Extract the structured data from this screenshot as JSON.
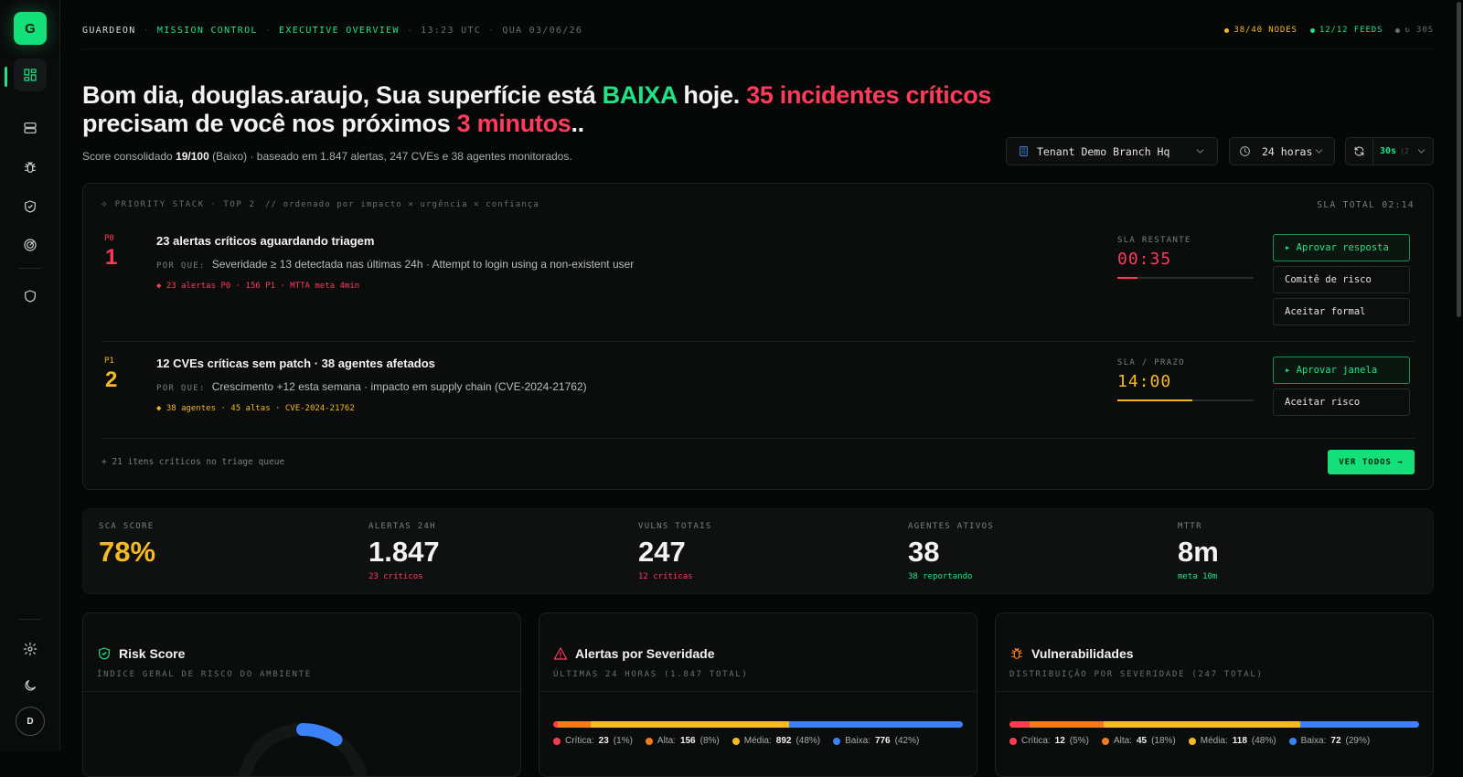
{
  "app": {
    "logo_letter": "G",
    "user_initial": "D"
  },
  "sidebar": {
    "items": [
      {
        "name": "dashboard-icon",
        "active": true
      },
      {
        "name": "server-icon"
      },
      {
        "name": "bug-icon"
      },
      {
        "name": "shield-check-icon"
      },
      {
        "name": "radar-icon"
      },
      {
        "name": "shield-icon"
      }
    ],
    "bottom": [
      "gear-icon",
      "moon-icon"
    ]
  },
  "topbar": {
    "brand": "GUARDEON",
    "section": "MISSION CONTROL",
    "page": "EXECUTIVE OVERVIEW",
    "time": "13:23 UTC",
    "date": "QUA 03/06/26",
    "nodes": "38/40 NODES",
    "feeds": "12/12 FEEDS",
    "refresh": "↻ 30S"
  },
  "headline": {
    "part1": "Bom dia, douglas.araujo, Sua superfície está ",
    "level": "BAIXA",
    "part2": " hoje. ",
    "incidents": "35 incidentes críticos",
    "part3": "precisam de você nos próximos ",
    "minutes": "3 minutos",
    "part4": "..",
    "sub_prefix": "Score consolidado ",
    "sub_score": "19/100",
    "sub_rest": " (Baixo) · baseado em 1.847 alertas, 247 CVEs e 38 agentes monitorados."
  },
  "controls": {
    "tenant": "Tenant Demo Branch Hq",
    "range": "24 horas",
    "interval": "30s",
    "interval_hint": "(2"
  },
  "priority": {
    "header_title": "⟡ PRIORITY STACK",
    "header_top": "· TOP 2",
    "header_note": "// ordenado por impacto × urgência × confiança",
    "sla_total": "SLA TOTAL 02:14",
    "why_label": "POR QUE:",
    "items": [
      {
        "tag": "P0",
        "num": "1",
        "title": "23 alertas críticos aguardando triagem",
        "why": "Severidade ≥ 13 detectada nas últimas 24h · Attempt to login using a non-existent user",
        "meta": "◆ 23 alertas P0 · 156 P1 · MTTA meta 4min",
        "sla_label": "SLA RESTANTE",
        "sla_value": "00:35",
        "sla_progress": 0.15,
        "color": "#ff3b5c",
        "actions": [
          "▸ Aprovar resposta",
          "Comitê de risco",
          "Aceitar formal"
        ]
      },
      {
        "tag": "P1",
        "num": "2",
        "title": "12 CVEs críticas sem patch · 38 agentes afetados",
        "why": "Crescimento +12 esta semana · impacto em supply chain (CVE-2024-21762)",
        "meta": "◆ 38 agentes · 45 altas · CVE-2024-21762",
        "sla_label": "SLA / PRAZO",
        "sla_value": "14:00",
        "sla_progress": 0.55,
        "color": "#f5b921",
        "actions": [
          "▸ Aprovar janela",
          "Aceitar risco"
        ]
      }
    ],
    "queue": "+ 21 itens críticos no triage queue",
    "see_all": "VER TODOS →"
  },
  "kpis": [
    {
      "label": "SCA SCORE",
      "value": "78%",
      "sub": "",
      "value_color": "#f5b921",
      "sub_color": ""
    },
    {
      "label": "ALERTAS 24H",
      "value": "1.847",
      "sub": "23 críticos",
      "value_color": "#f3f3f3",
      "sub_color": "#ff3b5c"
    },
    {
      "label": "VULNS TOTAIS",
      "value": "247",
      "sub": "12 críticas",
      "value_color": "#f3f3f3",
      "sub_color": "#ff3b5c"
    },
    {
      "label": "AGENTES ATIVOS",
      "value": "38",
      "sub": "38 reportando",
      "value_color": "#f3f3f3",
      "sub_color": "#21e384"
    },
    {
      "label": "MTTR",
      "value": "8m",
      "sub": "meta 10m",
      "value_color": "#f3f3f3",
      "sub_color": "#21e384"
    }
  ],
  "cards": [
    {
      "title": "Risk Score",
      "subtitle": "ÍNDICE GERAL DE RISCO DO AMBIENTE",
      "icon": "shield-check-icon",
      "icon_color": "#21e384"
    },
    {
      "title": "Alertas por Severidade",
      "subtitle": "ÚLTIMAS 24 HORAS (1.847 TOTAL)",
      "icon": "alert-triangle-icon",
      "icon_color": "#ff3b5c",
      "segments": [
        {
          "label": "Crítica:",
          "count": "23",
          "pct": "(1%)",
          "value": 1,
          "color": "#ff3b4f"
        },
        {
          "label": "Alta:",
          "count": "156",
          "pct": "(8%)",
          "value": 8,
          "color": "#f47a1f"
        },
        {
          "label": "Média:",
          "count": "892",
          "pct": "(48%)",
          "value": 48,
          "color": "#f5b921"
        },
        {
          "label": "Baixa:",
          "count": "776",
          "pct": "(42%)",
          "value": 42,
          "color": "#3b82f6"
        }
      ]
    },
    {
      "title": "Vulnerabilidades",
      "subtitle": "DISTRIBUIÇÃO POR SEVERIDADE (247 TOTAL)",
      "icon": "bug-icon",
      "icon_color": "#f47a1f",
      "segments": [
        {
          "label": "Crítica:",
          "count": "12",
          "pct": "(5%)",
          "value": 5,
          "color": "#ff3b4f"
        },
        {
          "label": "Alta:",
          "count": "45",
          "pct": "(18%)",
          "value": 18,
          "color": "#f47a1f"
        },
        {
          "label": "Média:",
          "count": "118",
          "pct": "(48%)",
          "value": 48,
          "color": "#f5b921"
        },
        {
          "label": "Baixa:",
          "count": "72",
          "pct": "(29%)",
          "value": 29,
          "color": "#3b82f6"
        }
      ]
    }
  ],
  "risk_score": {
    "value": 19,
    "max": 100,
    "color": "#3b82f6"
  }
}
